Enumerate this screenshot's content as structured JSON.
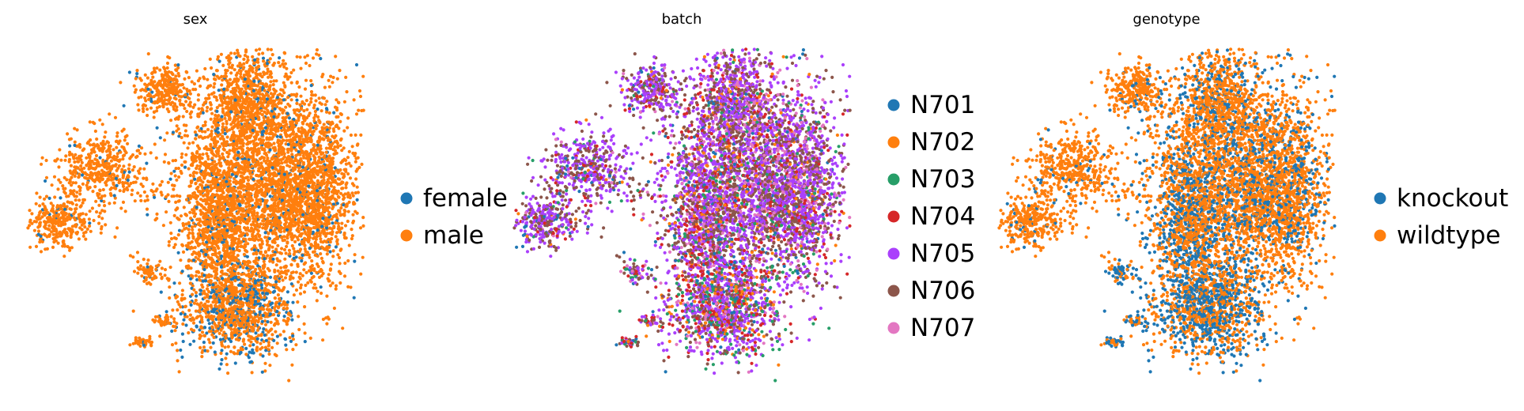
{
  "chart_data": [
    {
      "type": "scatter",
      "title": "sex",
      "xlabel": "",
      "ylabel": "",
      "grid": false,
      "legend_position": "right",
      "legend": [
        {
          "label": "female",
          "color": "#1f77b4"
        },
        {
          "label": "male",
          "color": "#ff7f0e"
        }
      ],
      "category_weights": {
        "base": [
          0.1,
          0.9
        ],
        "right": [
          0.08,
          0.92
        ],
        "lower": [
          0.3,
          0.7
        ],
        "left": [
          0.04,
          0.96
        ]
      }
    },
    {
      "type": "scatter",
      "title": "batch",
      "xlabel": "",
      "ylabel": "",
      "grid": false,
      "legend_position": "right",
      "legend": [
        {
          "label": "N701",
          "color": "#1f77b4"
        },
        {
          "label": "N702",
          "color": "#ff7f0e"
        },
        {
          "label": "N703",
          "color": "#279e68"
        },
        {
          "label": "N704",
          "color": "#d62728"
        },
        {
          "label": "N705",
          "color": "#aa40fc"
        },
        {
          "label": "N706",
          "color": "#8c564b"
        },
        {
          "label": "N707",
          "color": "#e377c2"
        }
      ],
      "category_weights": {
        "base": [
          0.06,
          0.08,
          0.1,
          0.16,
          0.3,
          0.2,
          0.1
        ],
        "right": [
          0.03,
          0.04,
          0.04,
          0.08,
          0.4,
          0.3,
          0.11
        ],
        "lower": [
          0.07,
          0.12,
          0.14,
          0.14,
          0.3,
          0.16,
          0.07
        ],
        "left": [
          0.05,
          0.02,
          0.03,
          0.05,
          0.5,
          0.32,
          0.03
        ]
      }
    },
    {
      "type": "scatter",
      "title": "genotype",
      "xlabel": "",
      "ylabel": "",
      "grid": false,
      "legend_position": "right",
      "legend": [
        {
          "label": "knockout",
          "color": "#1f77b4"
        },
        {
          "label": "wildtype",
          "color": "#ff7f0e"
        }
      ],
      "category_weights": {
        "base": [
          0.55,
          0.45
        ],
        "right": [
          0.25,
          0.75
        ],
        "lower": [
          0.55,
          0.45
        ],
        "left": [
          0.08,
          0.92
        ]
      }
    }
  ]
}
